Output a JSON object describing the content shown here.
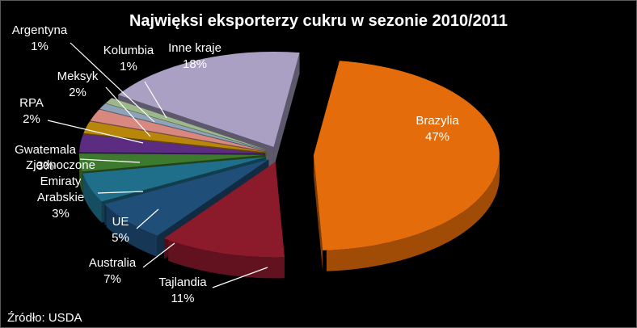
{
  "chart_data": {
    "type": "pie",
    "title": "Najwięksi eksporterzy cukru w sezonie 2010/2011",
    "source": "Źródło: USDA",
    "slices": [
      {
        "name": "Brazylia",
        "pct_label": "47%",
        "value": 47,
        "color": "#E46C0A"
      },
      {
        "name": "Tajlandia",
        "pct_label": "11%",
        "value": 11,
        "color": "#8B1A2B"
      },
      {
        "name": "Australia",
        "pct_label": "7%",
        "value": 7,
        "color": "#1F4E79"
      },
      {
        "name": "UE",
        "pct_label": "5%",
        "value": 5,
        "color": "#1F6F8B"
      },
      {
        "name": "Zjednoczone Emiraty Arabskie",
        "pct_label": "3%",
        "value": 3,
        "color": "#3E7A2E"
      },
      {
        "name": "Gwatemala",
        "pct_label": "3%",
        "value": 3,
        "color": "#5B2C82"
      },
      {
        "name": "RPA",
        "pct_label": "2%",
        "value": 2,
        "color": "#B8860B"
      },
      {
        "name": "Meksyk",
        "pct_label": "2%",
        "value": 2,
        "color": "#D98880"
      },
      {
        "name": "Argentyna",
        "pct_label": "1%",
        "value": 1,
        "color": "#8FA3B8"
      },
      {
        "name": "Kolumbia",
        "pct_label": "1%",
        "value": 1,
        "color": "#9CB88A"
      },
      {
        "name": "Inne kraje",
        "pct_label": "18%",
        "value": 18,
        "color": "#A9A0C4"
      }
    ]
  }
}
